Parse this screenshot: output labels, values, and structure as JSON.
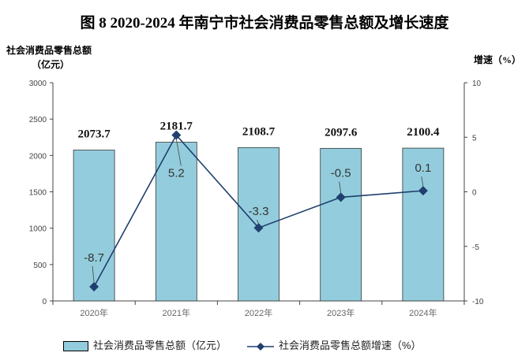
{
  "title": "图 8    2020-2024 年南宁市社会消费品零售总额及增长速度",
  "chart_data": {
    "type": "bar+line",
    "title": "图 8    2020-2024 年南宁市社会消费品零售总额及增长速度",
    "categories": [
      "2020年",
      "2021年",
      "2022年",
      "2023年",
      "2024年"
    ],
    "series": [
      {
        "name": "社会消费品零售总额（亿元）",
        "type": "bar",
        "axis": "left",
        "values": [
          2073.7,
          2181.7,
          2108.7,
          2097.6,
          2100.4
        ],
        "labels": [
          "2073.7",
          "2181.7",
          "2108.7",
          "2097.6",
          "2100.4"
        ],
        "color": "#93CDDD"
      },
      {
        "name": "社会消费品零售总额增速（%）",
        "type": "line",
        "axis": "right",
        "values": [
          -8.7,
          5.2,
          -3.3,
          -0.5,
          0.1
        ],
        "labels": [
          "-8.7",
          "5.2",
          "-3.3",
          "-0.5",
          "0.1"
        ],
        "color": "#1F3F6E"
      }
    ],
    "ylabel_left_line1": "社会消费品零售总额",
    "ylabel_left_line2": "（亿元）",
    "ylabel_right": "增速（%）",
    "ylim_left": [
      0,
      3000
    ],
    "yticks_left": [
      "0",
      "500",
      "1000",
      "1500",
      "2000",
      "2500",
      "3000"
    ],
    "ylim_right": [
      -10,
      10
    ],
    "yticks_right": [
      "-10",
      "-5",
      "0",
      "5",
      "10"
    ],
    "legend": "bottom",
    "grid": false
  }
}
